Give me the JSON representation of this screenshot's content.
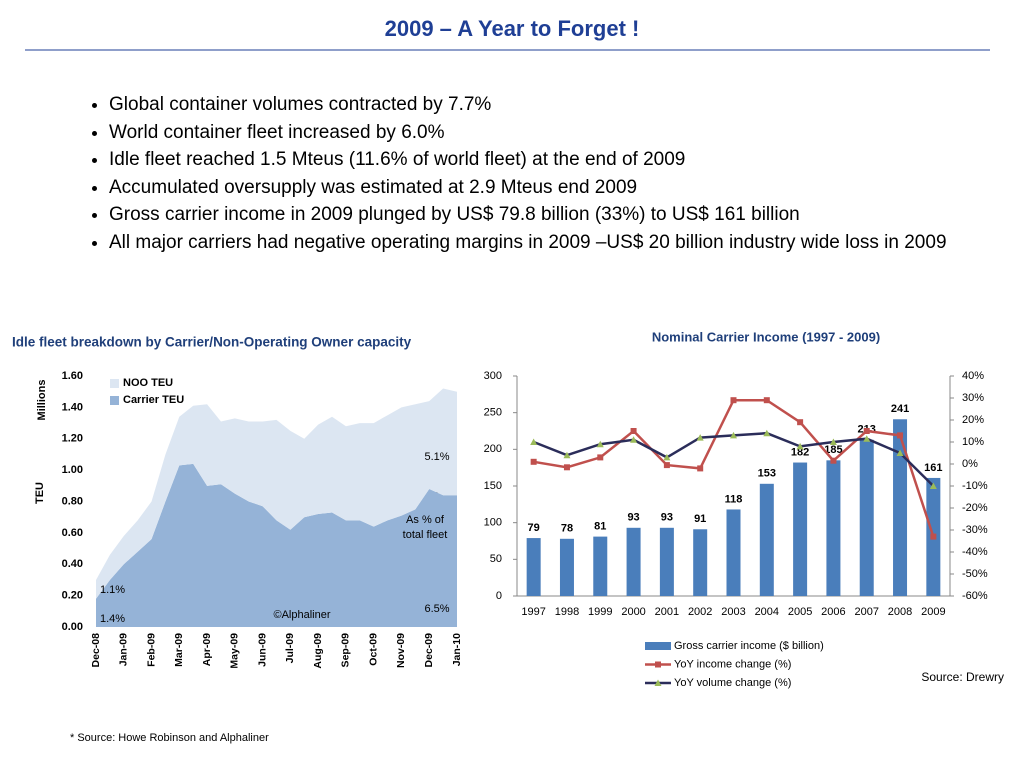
{
  "title": "2009 – A Year to Forget !",
  "bullets": [
    "Global container volumes contracted by 7.7%",
    "World container fleet increased by 6.0%",
    "Idle fleet reached 1.5 Mteus  (11.6% of world fleet) at the end of 2009",
    "Accumulated oversupply was estimated at 2.9 Mteus end 2009",
    "Gross carrier income in 2009 plunged by US$ 79.8 billion (33%) to US$ 161 billion",
    "All major carriers had negative operating margins in 2009 –US$ 20 billion industry wide loss in 2009"
  ],
  "footnote": "* Source: Howe Robinson and Alphaliner",
  "source": "Source: Drewry",
  "chart_data": [
    {
      "type": "area",
      "stacked": true,
      "title": "Idle fleet breakdown by Carrier/Non-Operating Owner capacity",
      "y_label": "TEU",
      "y_unit": "Millions",
      "categories": [
        "Dec-08",
        null,
        "Jan-09",
        null,
        "Feb-09",
        null,
        "Mar-09",
        null,
        "Apr-09",
        null,
        "May-09",
        null,
        "Jun-09",
        null,
        "Jul-09",
        null,
        "Aug-09",
        null,
        "Sep-09",
        null,
        "Oct-09",
        null,
        "Nov-09",
        null,
        "Dec-09",
        null,
        "Jan-10"
      ],
      "series": [
        {
          "name": "Carrier TEU",
          "color": "#95b3d7",
          "values": [
            0.18,
            0.3,
            0.4,
            0.48,
            0.56,
            0.8,
            1.03,
            1.04,
            0.9,
            0.91,
            0.85,
            0.8,
            0.77,
            0.68,
            0.62,
            0.7,
            0.72,
            0.73,
            0.68,
            0.68,
            0.64,
            0.68,
            0.71,
            0.75,
            0.88,
            0.84,
            0.84
          ]
        },
        {
          "name": "NOO TEU",
          "color": "#dce6f2",
          "values": [
            0.12,
            0.16,
            0.18,
            0.2,
            0.24,
            0.3,
            0.31,
            0.37,
            0.52,
            0.4,
            0.48,
            0.51,
            0.54,
            0.64,
            0.63,
            0.5,
            0.57,
            0.61,
            0.6,
            0.62,
            0.66,
            0.67,
            0.69,
            0.67,
            0.56,
            0.68,
            0.66
          ]
        }
      ],
      "ylim": [
        0,
        1.6
      ],
      "yticks": [
        {
          "value": 0,
          "label": "0.00"
        },
        {
          "value": 0.2,
          "label": "0.20"
        },
        {
          "value": 0.4,
          "label": "0.40"
        },
        {
          "value": 0.6,
          "label": "0.60"
        },
        {
          "value": 0.8,
          "label": "0.80"
        },
        {
          "value": 1,
          "label": "1.00"
        },
        {
          "value": 1.2,
          "label": "1.20"
        },
        {
          "value": 1.4,
          "label": "1.40"
        },
        {
          "value": 1.6,
          "label": "1.60"
        }
      ],
      "annotations": [
        "5.1%",
        "As % of",
        "total fleet",
        "6.5%",
        "1.1%",
        "1.4%",
        "©Alphaliner"
      ],
      "legend": "upper left"
    },
    {
      "type": "bar",
      "title": "Nominal Carrier Income (1997 - 2009)",
      "categories": [
        "1997",
        "1998",
        "1999",
        "2000",
        "2001",
        "2002",
        "2003",
        "2004",
        "2005",
        "2006",
        "2007",
        "2008",
        "2009"
      ],
      "series": [
        {
          "name": "Gross carrier income ($ billion)",
          "type": "bar",
          "color": "#4a7ebb",
          "values": [
            79,
            78,
            81,
            93,
            93,
            91,
            118,
            153,
            182,
            185,
            213,
            241,
            161
          ]
        },
        {
          "name": "YoY income change (%)",
          "type": "line",
          "axis": "y2",
          "color": "#c0504d",
          "marker": "square",
          "values": [
            1,
            -1.5,
            3,
            15,
            -0.5,
            -2,
            29,
            29,
            19,
            1.5,
            15,
            13,
            -33
          ]
        },
        {
          "name": "YoY volume change (%)",
          "type": "line",
          "axis": "y2",
          "color": "#2b2d5a",
          "marker_color": "#9bbb59",
          "marker": "triangle",
          "values": [
            10,
            4,
            9,
            11,
            3,
            12,
            13,
            14,
            8,
            10,
            11.5,
            5,
            -10
          ]
        }
      ],
      "ylim": [
        0,
        300
      ],
      "yticks": [
        0,
        50,
        100,
        150,
        200,
        250,
        300
      ],
      "y2lim": [
        -60,
        40
      ],
      "y2ticks": [
        {
          "value": -60,
          "label": "-60%"
        },
        {
          "value": -50,
          "label": "-50%"
        },
        {
          "value": -40,
          "label": "-40%"
        },
        {
          "value": -30,
          "label": "-30%"
        },
        {
          "value": -20,
          "label": "-20%"
        },
        {
          "value": -10,
          "label": "-10%"
        },
        {
          "value": 0,
          "label": "0%"
        },
        {
          "value": 10,
          "label": "10%"
        },
        {
          "value": 20,
          "label": "20%"
        },
        {
          "value": 30,
          "label": "30%"
        },
        {
          "value": 40,
          "label": "40%"
        }
      ],
      "data_labels": true,
      "legend": "bottom"
    }
  ]
}
